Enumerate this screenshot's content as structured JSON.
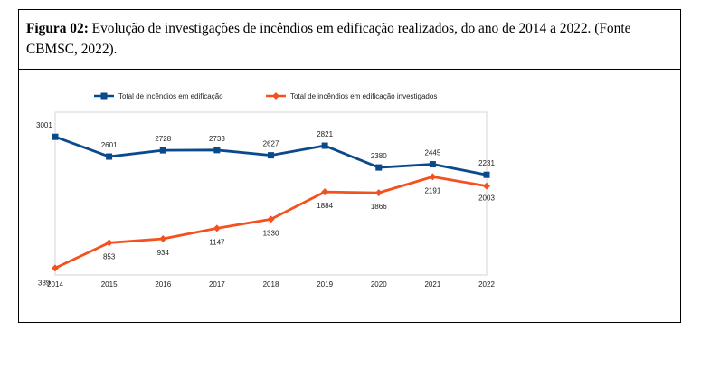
{
  "caption": {
    "label": "Figura 02:",
    "text": " Evolução de investigações de incêndios em edificação realizados, do ano de 2014 a 2022. (Fonte CBMSC, 2022)."
  },
  "chart_data": {
    "type": "line",
    "x": [
      "2014",
      "2015",
      "2016",
      "2017",
      "2018",
      "2019",
      "2020",
      "2021",
      "2022"
    ],
    "series": [
      {
        "name": "Total de incêndios em edificação",
        "color": "#0a4a8c",
        "marker": "square",
        "values": [
          3001,
          2601,
          2728,
          2733,
          2627,
          2821,
          2380,
          2445,
          2231
        ]
      },
      {
        "name": "Total de incêndios em edificação investigados",
        "color": "#f4511e",
        "marker": "diamond",
        "values": [
          339,
          853,
          934,
          1147,
          1330,
          1884,
          1866,
          2191,
          2003
        ]
      }
    ],
    "ylim": [
      200,
      3500
    ],
    "grid": false,
    "legend_position": "top"
  }
}
